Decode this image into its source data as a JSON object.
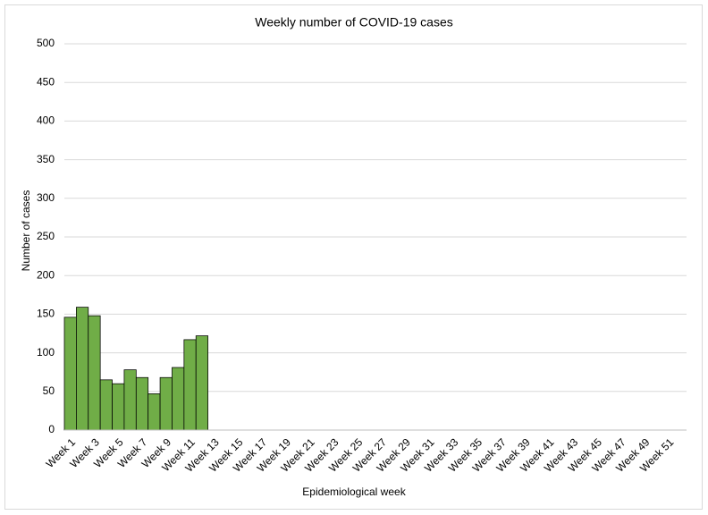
{
  "chart_data": {
    "type": "bar",
    "title": "Weekly number of COVID-19 cases",
    "x_label": "Epidemiological week",
    "y_label": "Number of cases",
    "categories": [
      "Week 1",
      null,
      "Week 3",
      null,
      "Week 5",
      null,
      "Week 7",
      null,
      "Week 9",
      null,
      "Week 11",
      null,
      "Week 13",
      null,
      "Week 15",
      null,
      "Week 17",
      null,
      "Week 19",
      null,
      "Week 21",
      null,
      "Week 23",
      null,
      "Week 25",
      null,
      "Week 27",
      null,
      "Week 29",
      null,
      "Week 31",
      null,
      "Week 33",
      null,
      "Week 35",
      null,
      "Week 37",
      null,
      "Week 39",
      null,
      "Week 41",
      null,
      "Week 43",
      null,
      "Week 45",
      null,
      "Week 47",
      null,
      "Week 49",
      null,
      "Week 51",
      null
    ],
    "values": [
      146,
      159,
      148,
      65,
      60,
      78,
      68,
      47,
      68,
      81,
      117,
      122,
      null,
      null,
      null,
      null,
      null,
      null,
      null,
      null,
      null,
      null,
      null,
      null,
      null,
      null,
      null,
      null,
      null,
      null,
      null,
      null,
      null,
      null,
      null,
      null,
      null,
      null,
      null,
      null,
      null,
      null,
      null,
      null,
      null,
      null,
      null,
      null,
      null,
      null,
      null,
      null
    ],
    "color": "#70ad47",
    "ylim": [
      0,
      500
    ],
    "yticks": [
      0,
      50,
      100,
      150,
      200,
      250,
      300,
      350,
      400,
      450,
      500
    ],
    "grid": true
  }
}
